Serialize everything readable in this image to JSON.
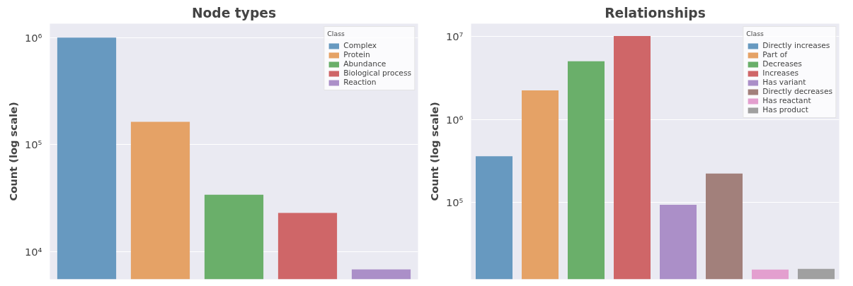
{
  "chart_data": [
    {
      "type": "bar",
      "title": "Node types",
      "ylabel": "Count (log scale)",
      "legend_title": "Class",
      "log": true,
      "grid": "y",
      "legend": "top right",
      "tick_labels": "y",
      "stacked": true,
      "categories": [
        null,
        null,
        null,
        null,
        null
      ],
      "ylim": [
        5500,
        1350000
      ],
      "yticks": [
        {
          "value": 10000,
          "label": "10⁴"
        },
        {
          "value": 100000,
          "label": "10⁵"
        },
        {
          "value": 1000000,
          "label": "10⁶"
        }
      ],
      "series": [
        {
          "name": "Complex",
          "color": "#6799c0",
          "values": [
            1000000,
            null,
            null,
            null,
            null
          ]
        },
        {
          "name": "Protein",
          "color": "#e5a266",
          "values": [
            null,
            163000,
            null,
            null,
            null
          ]
        },
        {
          "name": "Abundance",
          "color": "#6aaf6a",
          "values": [
            null,
            null,
            34000,
            null,
            null
          ]
        },
        {
          "name": "Biological process",
          "color": "#cf6668",
          "values": [
            null,
            null,
            null,
            23000,
            null
          ]
        },
        {
          "name": "Reaction",
          "color": "#ab8fc8",
          "values": [
            null,
            null,
            null,
            null,
            6800
          ]
        }
      ]
    },
    {
      "type": "bar",
      "title": "Relationships",
      "ylabel": "Count (log scale)",
      "legend_title": "Class",
      "log": true,
      "grid": "y",
      "legend": "top right",
      "tick_labels": "y",
      "stacked": true,
      "categories": [
        null,
        null,
        null,
        null,
        null,
        null,
        null,
        null
      ],
      "ylim": [
        12000,
        14100000
      ],
      "yticks": [
        {
          "value": 100000,
          "label": "10⁵"
        },
        {
          "value": 1000000,
          "label": "10⁶"
        },
        {
          "value": 10000000,
          "label": "10⁷"
        }
      ],
      "series": [
        {
          "name": "Directly increases",
          "color": "#6799c0",
          "values": [
            360000,
            null,
            null,
            null,
            null,
            null,
            null,
            null
          ]
        },
        {
          "name": "Part of",
          "color": "#e5a266",
          "values": [
            null,
            2230000,
            null,
            null,
            null,
            null,
            null,
            null
          ]
        },
        {
          "name": "Decreases",
          "color": "#6aaf6a",
          "values": [
            null,
            null,
            4980000,
            null,
            null,
            null,
            null,
            null
          ]
        },
        {
          "name": "Increases",
          "color": "#cf6668",
          "values": [
            null,
            null,
            null,
            10000000,
            null,
            null,
            null,
            null
          ]
        },
        {
          "name": "Has variant",
          "color": "#ab8fc8",
          "values": [
            null,
            null,
            null,
            null,
            94000,
            null,
            null,
            null
          ]
        },
        {
          "name": "Directly decreases",
          "color": "#a2807b",
          "values": [
            null,
            null,
            null,
            null,
            null,
            223000,
            null,
            null
          ]
        },
        {
          "name": "Has reactant",
          "color": "#e39fcf",
          "values": [
            null,
            null,
            null,
            null,
            null,
            null,
            15700,
            null
          ]
        },
        {
          "name": "Has product",
          "color": "#a0a0a0",
          "values": [
            null,
            null,
            null,
            null,
            null,
            null,
            null,
            16000
          ]
        }
      ]
    }
  ]
}
